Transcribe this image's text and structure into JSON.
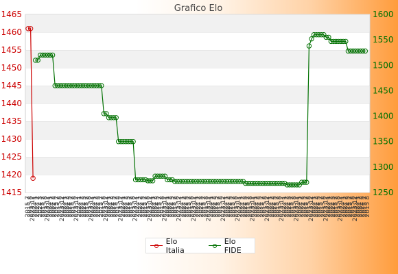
{
  "chart_data": {
    "type": "line",
    "title": "Grafico Elo",
    "y_left": {
      "ticks": [
        1415,
        1420,
        1425,
        1430,
        1435,
        1440,
        1445,
        1450,
        1455,
        1460,
        1465
      ],
      "range": [
        1415,
        1465
      ],
      "color": "#cc0000"
    },
    "y_right": {
      "ticks": [
        1250,
        1300,
        1350,
        1400,
        1450,
        1500,
        1550,
        1600
      ],
      "range": [
        1250,
        1600
      ],
      "color": "#007000"
    },
    "x_tick_labels": [
      "2015 7",
      "2015 8",
      "2023 12",
      "2024 1",
      "2024 2",
      "2024 3"
    ],
    "grid": "horizontal bands",
    "legend_position": "bottom",
    "series": [
      {
        "name": "Elo Italia",
        "axis": "left",
        "color": "#cc0000",
        "points": [
          [
            0,
            1461
          ],
          [
            1,
            1461
          ],
          [
            2,
            1419
          ]
        ]
      },
      {
        "name": "Elo FIDE",
        "axis": "right",
        "color": "#007000",
        "steps": [
          [
            3,
            2,
            1510
          ],
          [
            5,
            6,
            1520
          ],
          [
            11,
            20,
            1460
          ],
          [
            31,
            2,
            1405
          ],
          [
            33,
            4,
            1397
          ],
          [
            37,
            7,
            1350
          ],
          [
            44,
            5,
            1275
          ],
          [
            49,
            3,
            1273
          ],
          [
            52,
            5,
            1282
          ],
          [
            57,
            3,
            1275
          ],
          [
            60,
            29,
            1272
          ],
          [
            89,
            17,
            1268
          ],
          [
            106,
            6,
            1265
          ],
          [
            112,
            3,
            1270
          ],
          [
            115,
            1,
            1538
          ],
          [
            116,
            1,
            1552
          ],
          [
            117,
            5,
            1560
          ],
          [
            122,
            2,
            1555
          ],
          [
            124,
            7,
            1547
          ],
          [
            131,
            8,
            1528
          ]
        ]
      }
    ]
  },
  "legend": {
    "italia_label": "Elo Italia",
    "fide_label": "Elo FIDE"
  }
}
